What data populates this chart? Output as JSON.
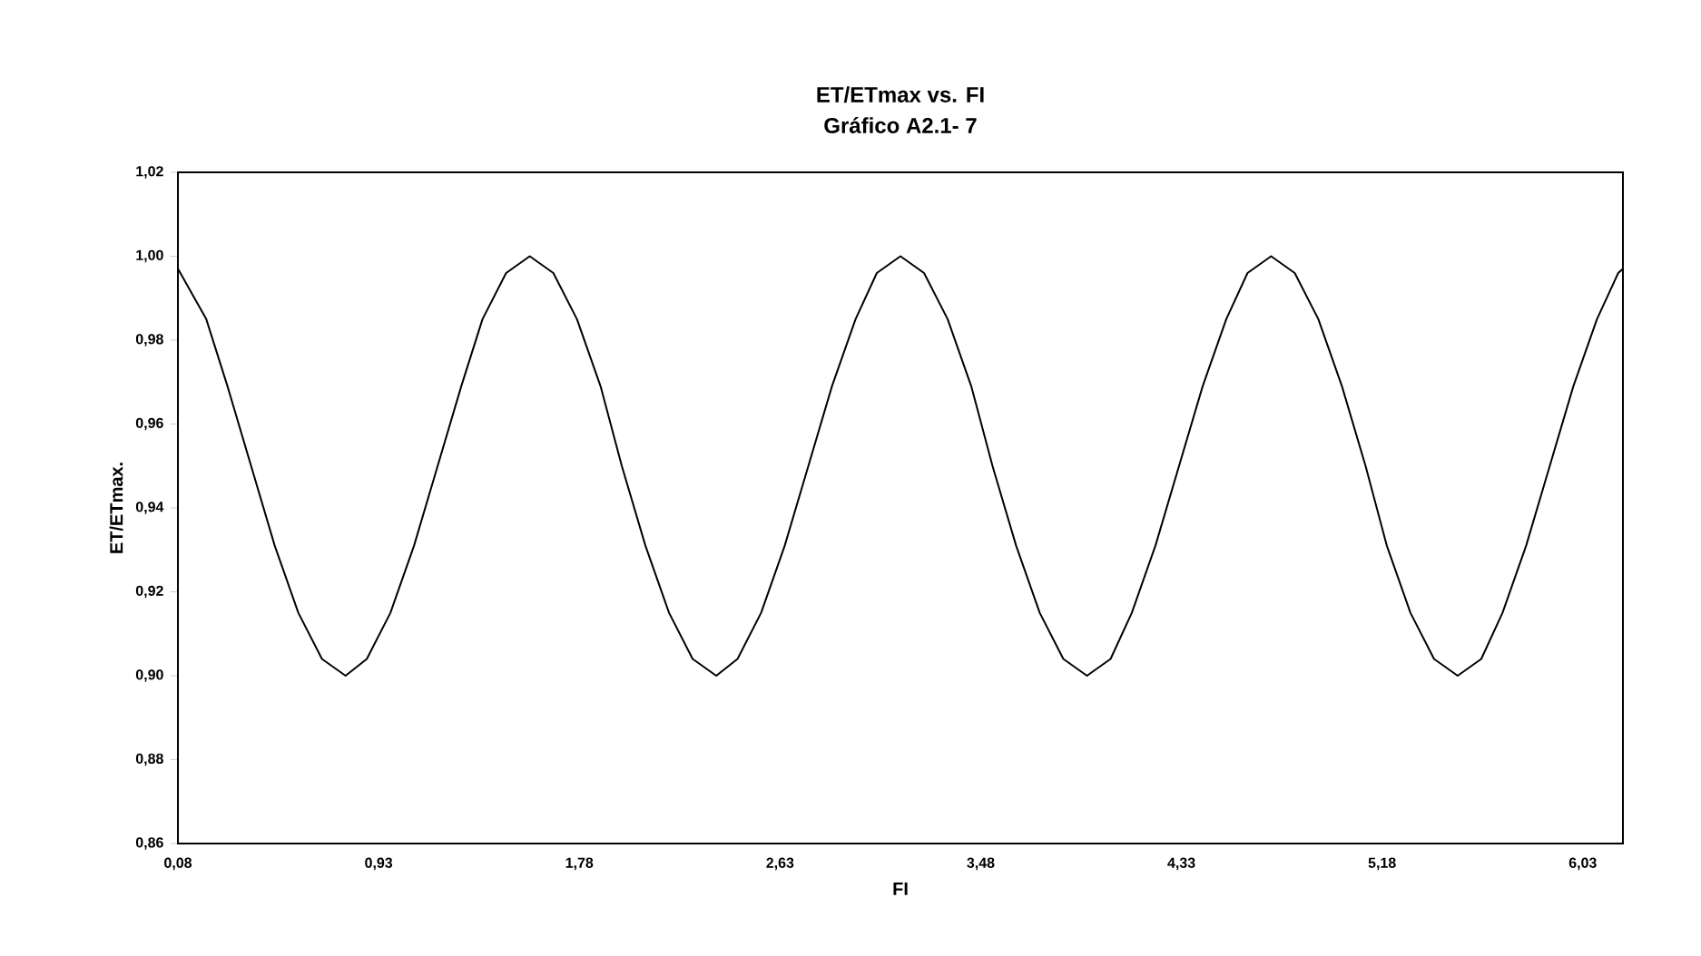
{
  "chart_data": {
    "type": "line",
    "title": "ET/ETmax vs. FI",
    "subtitle": "Gráfico A2.1- 7",
    "xlabel": "FI",
    "ylabel": "ET/ETmax.",
    "x": [
      0.08,
      0.2,
      0.29,
      0.39,
      0.49,
      0.59,
      0.69,
      0.79,
      0.88,
      0.98,
      1.08,
      1.18,
      1.28,
      1.37,
      1.47,
      1.57,
      1.67,
      1.77,
      1.87,
      1.96,
      2.06,
      2.16,
      2.26,
      2.36,
      2.45,
      2.55,
      2.65,
      2.75,
      2.85,
      2.95,
      3.04,
      3.14,
      3.24,
      3.34,
      3.44,
      3.53,
      3.63,
      3.73,
      3.83,
      3.93,
      4.03,
      4.12,
      4.22,
      4.32,
      4.42,
      4.52,
      4.61,
      4.71,
      4.81,
      4.91,
      5.01,
      5.11,
      5.2,
      5.3,
      5.4,
      5.5,
      5.6,
      5.69,
      5.79,
      5.89,
      5.99,
      6.09,
      6.18,
      6.2
    ],
    "series": [
      {
        "color": "#000000",
        "values": [
          0.997,
          0.985,
          0.969,
          0.95,
          0.931,
          0.915,
          0.904,
          0.9,
          0.904,
          0.915,
          0.931,
          0.95,
          0.969,
          0.985,
          0.996,
          1.0,
          0.996,
          0.985,
          0.969,
          0.95,
          0.931,
          0.915,
          0.904,
          0.9,
          0.904,
          0.915,
          0.931,
          0.95,
          0.969,
          0.985,
          0.996,
          1.0,
          0.996,
          0.985,
          0.969,
          0.95,
          0.931,
          0.915,
          0.904,
          0.9,
          0.904,
          0.915,
          0.931,
          0.95,
          0.969,
          0.985,
          0.996,
          1.0,
          0.996,
          0.985,
          0.969,
          0.95,
          0.931,
          0.915,
          0.904,
          0.9,
          0.904,
          0.915,
          0.931,
          0.95,
          0.969,
          0.985,
          0.996,
          0.997
        ]
      }
    ],
    "xlim": [
      0.08,
      6.2
    ],
    "xticks": [
      {
        "value": 0.08,
        "label": "0,08"
      },
      {
        "value": 0.93,
        "label": "0,93"
      },
      {
        "value": 1.78,
        "label": "1,78"
      },
      {
        "value": 2.63,
        "label": "2,63"
      },
      {
        "value": 3.48,
        "label": "3,48"
      },
      {
        "value": 4.33,
        "label": "4,33"
      },
      {
        "value": 5.18,
        "label": "5,18"
      },
      {
        "value": 6.03,
        "label": "6,03"
      }
    ],
    "ylim": [
      0.86,
      1.02
    ],
    "yticks": [
      {
        "value": 0.86,
        "label": "0,86"
      },
      {
        "value": 0.88,
        "label": "0,88"
      },
      {
        "value": 0.9,
        "label": "0,90"
      },
      {
        "value": 0.92,
        "label": "0,92"
      },
      {
        "value": 0.94,
        "label": "0,94"
      },
      {
        "value": 0.96,
        "label": "0,96"
      },
      {
        "value": 0.98,
        "label": "0,98"
      },
      {
        "value": 1.0,
        "label": "1,00"
      },
      {
        "value": 1.02,
        "label": "1,02"
      }
    ],
    "grid": false,
    "marker": "none",
    "line_style": "solid"
  }
}
